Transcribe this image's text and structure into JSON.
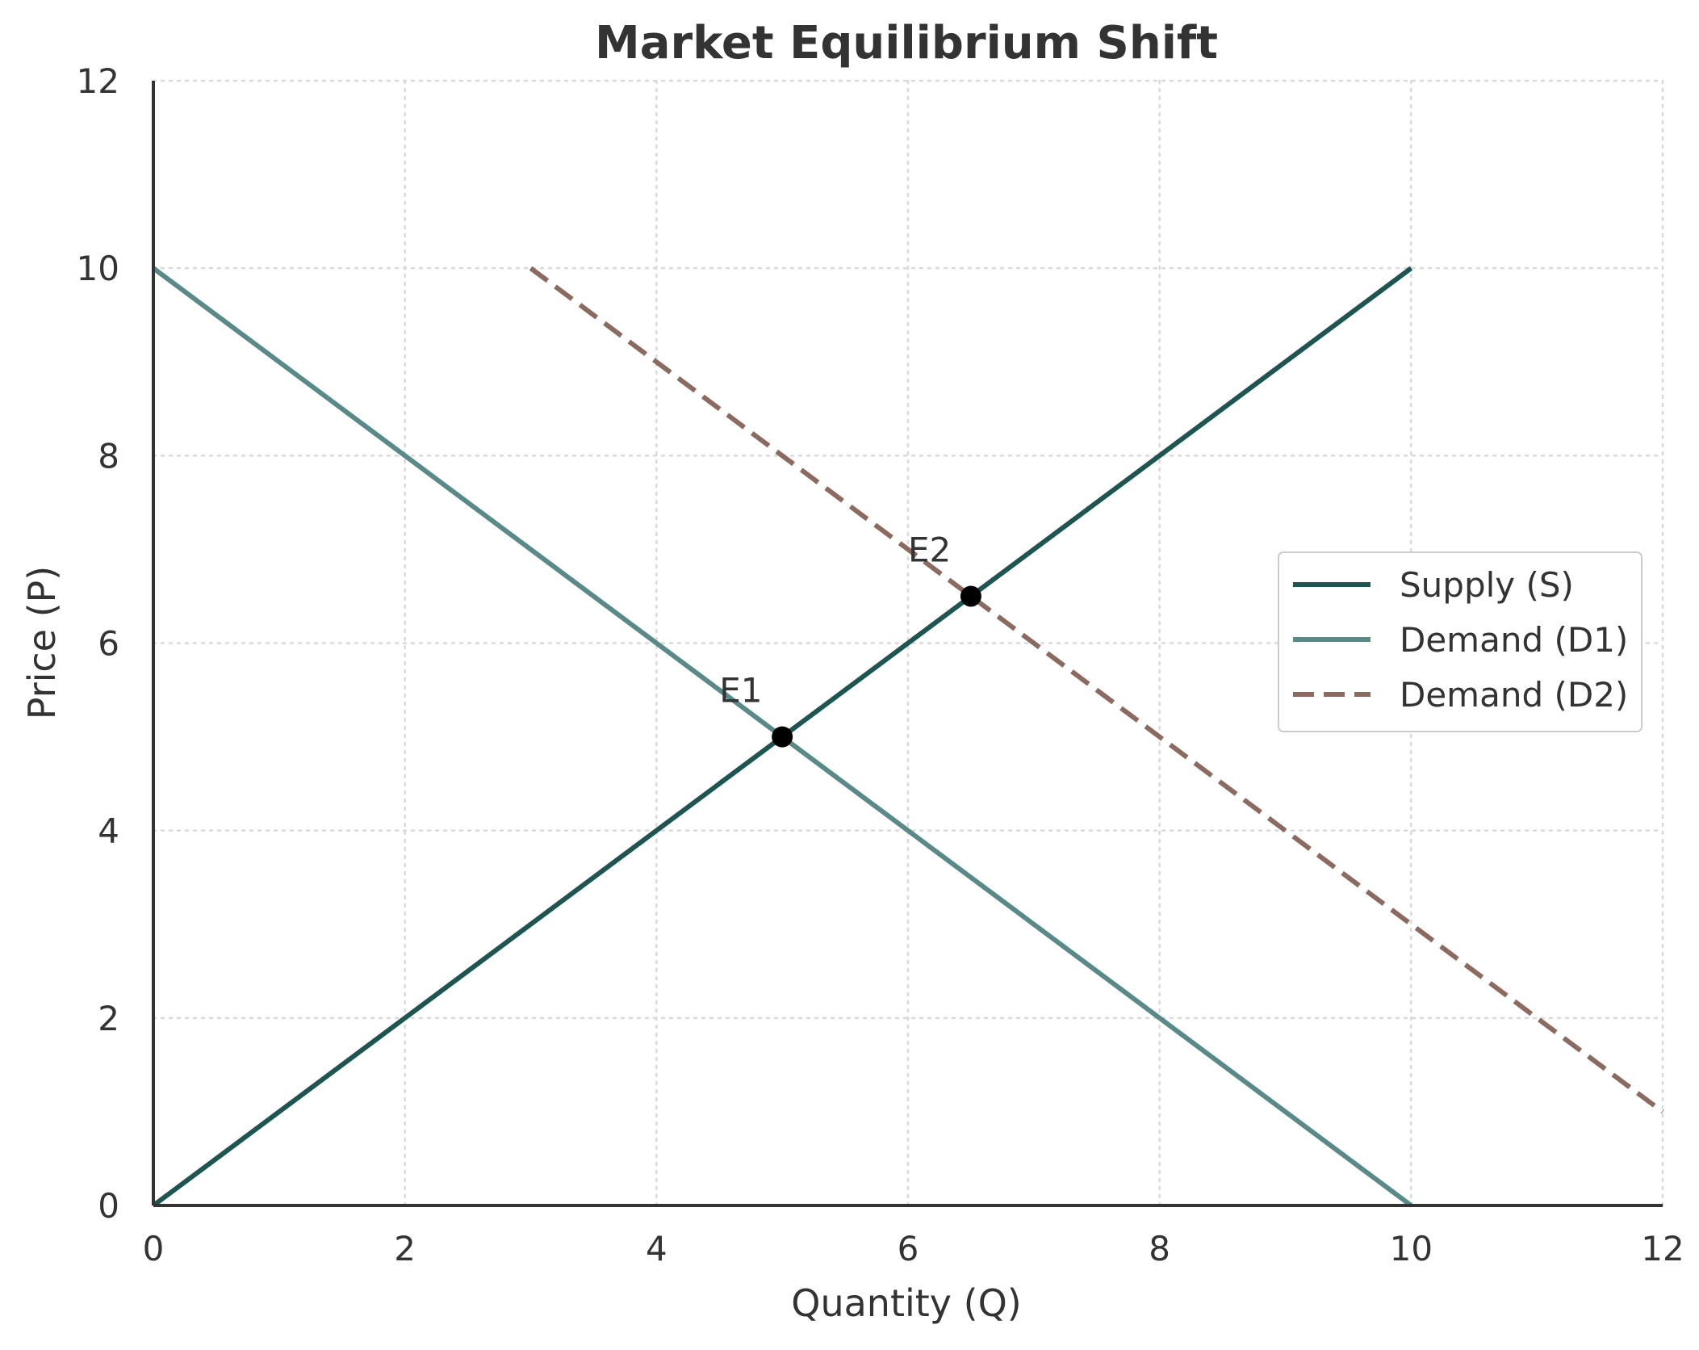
{
  "chart_data": {
    "type": "line",
    "title": "Market Equilibrium Shift",
    "xlabel": "Quantity (Q)",
    "ylabel": "Price (P)",
    "xlim": [
      0,
      12
    ],
    "ylim": [
      0,
      12
    ],
    "xticks": [
      0,
      2,
      4,
      6,
      8,
      10,
      12
    ],
    "yticks": [
      0,
      2,
      4,
      6,
      8,
      10,
      12
    ],
    "grid": true,
    "grid_style": "dotted",
    "legend_position": "center-right",
    "series": [
      {
        "name": "Supply (S)",
        "color": "#1f5550",
        "style": "solid",
        "x": [
          0,
          10
        ],
        "y": [
          0,
          10
        ]
      },
      {
        "name": "Demand (D1)",
        "color": "#5a8a88",
        "style": "solid",
        "x": [
          0,
          10
        ],
        "y": [
          10,
          0
        ]
      },
      {
        "name": "Demand (D2)",
        "color": "#8b6b60",
        "style": "dashed",
        "x": [
          3,
          12
        ],
        "y": [
          10,
          1
        ]
      }
    ],
    "annotations": [
      {
        "label": "E1",
        "x": 5,
        "y": 5
      },
      {
        "label": "E2",
        "x": 6.5,
        "y": 6.5
      }
    ],
    "point_color": "#000000"
  }
}
